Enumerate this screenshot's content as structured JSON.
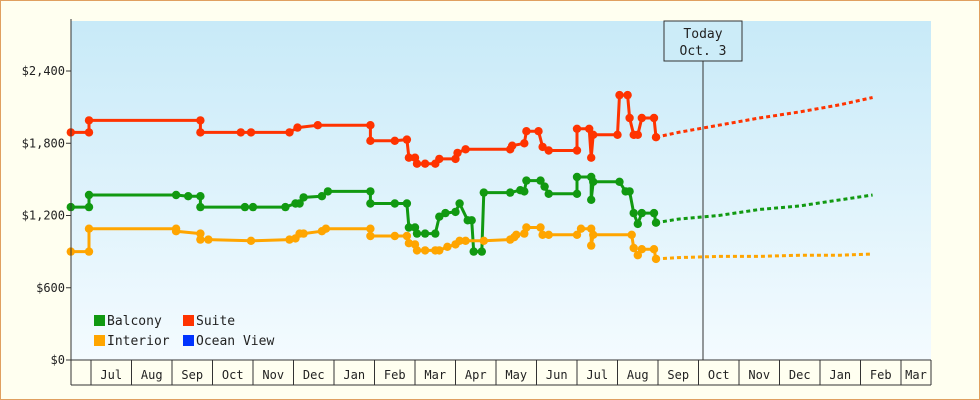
{
  "chart_data": {
    "type": "line",
    "title": "",
    "xlabel": "",
    "ylabel": "",
    "x_unit": "month",
    "x_range": [
      "2023-06-01",
      "2024-03-31"
    ],
    "ylim": [
      0,
      2700
    ],
    "y_ticks": [
      0,
      600,
      1200,
      1800,
      2400
    ],
    "y_tick_labels": [
      "$0",
      "$600",
      "$1,200",
      "$1,800",
      "$2,400"
    ],
    "x_tick_labels": [
      "Jul",
      "Aug",
      "Sep",
      "Oct",
      "Nov",
      "Dec",
      "Jan",
      "Feb",
      "Mar",
      "Apr",
      "May",
      "Jun",
      "Jul",
      "Aug",
      "Sep",
      "Oct",
      "Nov",
      "Dec",
      "Jan",
      "Feb",
      "Mar"
    ],
    "today": {
      "label_line1": "Today",
      "label_line2": "Oct. 3"
    },
    "grid": false,
    "legend_position": "bottom-left",
    "legend": [
      {
        "name": "Balcony",
        "color": "#119911"
      },
      {
        "name": "Suite",
        "color": "#ff3300"
      },
      {
        "name": "Interior",
        "color": "#ffa500"
      },
      {
        "name": "Ocean View",
        "color": "#0033ff"
      }
    ],
    "series": [
      {
        "name": "Suite",
        "color": "#ff3300",
        "points": [
          [
            0,
            1890
          ],
          [
            0.45,
            1890
          ],
          [
            0.45,
            1990
          ],
          [
            3.2,
            1990
          ],
          [
            3.2,
            1890
          ],
          [
            4.2,
            1890
          ],
          [
            4.45,
            1890
          ],
          [
            5.4,
            1890
          ],
          [
            5.6,
            1930
          ],
          [
            6.1,
            1950
          ],
          [
            7.4,
            1950
          ],
          [
            7.4,
            1820
          ],
          [
            8.0,
            1820
          ],
          [
            8.3,
            1830
          ],
          [
            8.35,
            1680
          ],
          [
            8.5,
            1680
          ],
          [
            8.55,
            1630
          ],
          [
            8.75,
            1630
          ],
          [
            9.0,
            1630
          ],
          [
            9.1,
            1670
          ],
          [
            9.5,
            1670
          ],
          [
            9.55,
            1720
          ],
          [
            9.75,
            1750
          ],
          [
            10.85,
            1750
          ],
          [
            10.9,
            1780
          ],
          [
            11.2,
            1800
          ],
          [
            11.25,
            1900
          ],
          [
            11.55,
            1900
          ],
          [
            11.65,
            1770
          ],
          [
            11.8,
            1740
          ],
          [
            12.5,
            1740
          ],
          [
            12.5,
            1920
          ],
          [
            12.8,
            1920
          ],
          [
            12.85,
            1680
          ],
          [
            12.9,
            1870
          ],
          [
            13.5,
            1870
          ],
          [
            13.55,
            2200
          ],
          [
            13.75,
            2200
          ],
          [
            13.8,
            2010
          ],
          [
            13.9,
            1870
          ],
          [
            14.0,
            1870
          ],
          [
            14.1,
            2010
          ],
          [
            14.4,
            2010
          ],
          [
            14.45,
            1850
          ]
        ],
        "forecast": [
          [
            14.45,
            1850
          ],
          [
            15.0,
            1890
          ],
          [
            16.0,
            1950
          ],
          [
            17.0,
            2010
          ],
          [
            18.0,
            2060
          ],
          [
            19.0,
            2120
          ],
          [
            19.8,
            2180
          ]
        ]
      },
      {
        "name": "Balcony",
        "color": "#119911",
        "points": [
          [
            0,
            1270
          ],
          [
            0.45,
            1270
          ],
          [
            0.45,
            1370
          ],
          [
            2.6,
            1370
          ],
          [
            2.9,
            1360
          ],
          [
            3.2,
            1360
          ],
          [
            3.2,
            1270
          ],
          [
            4.3,
            1270
          ],
          [
            4.5,
            1270
          ],
          [
            5.3,
            1270
          ],
          [
            5.55,
            1300
          ],
          [
            5.65,
            1300
          ],
          [
            5.75,
            1350
          ],
          [
            6.2,
            1360
          ],
          [
            6.35,
            1400
          ],
          [
            7.4,
            1400
          ],
          [
            7.4,
            1300
          ],
          [
            8.0,
            1300
          ],
          [
            8.3,
            1300
          ],
          [
            8.35,
            1100
          ],
          [
            8.5,
            1100
          ],
          [
            8.55,
            1050
          ],
          [
            8.75,
            1050
          ],
          [
            9.0,
            1050
          ],
          [
            9.1,
            1190
          ],
          [
            9.25,
            1220
          ],
          [
            9.5,
            1230
          ],
          [
            9.6,
            1300
          ],
          [
            9.8,
            1160
          ],
          [
            9.9,
            1160
          ],
          [
            9.95,
            900
          ],
          [
            10.15,
            900
          ],
          [
            10.2,
            1390
          ],
          [
            10.85,
            1390
          ],
          [
            11.1,
            1410
          ],
          [
            11.2,
            1400
          ],
          [
            11.25,
            1490
          ],
          [
            11.6,
            1490
          ],
          [
            11.7,
            1440
          ],
          [
            11.8,
            1380
          ],
          [
            12.5,
            1380
          ],
          [
            12.5,
            1520
          ],
          [
            12.85,
            1520
          ],
          [
            12.85,
            1330
          ],
          [
            12.9,
            1480
          ],
          [
            13.55,
            1480
          ],
          [
            13.7,
            1400
          ],
          [
            13.8,
            1400
          ],
          [
            13.9,
            1220
          ],
          [
            14.0,
            1130
          ],
          [
            14.1,
            1220
          ],
          [
            14.4,
            1220
          ],
          [
            14.45,
            1140
          ]
        ],
        "forecast": [
          [
            14.45,
            1140
          ],
          [
            15.0,
            1170
          ],
          [
            16.0,
            1200
          ],
          [
            17.0,
            1250
          ],
          [
            18.0,
            1280
          ],
          [
            19.0,
            1330
          ],
          [
            19.8,
            1370
          ]
        ]
      },
      {
        "name": "Interior",
        "color": "#ffa500",
        "points": [
          [
            0,
            900
          ],
          [
            0.45,
            900
          ],
          [
            0.45,
            1090
          ],
          [
            2.6,
            1090
          ],
          [
            2.6,
            1070
          ],
          [
            3.2,
            1050
          ],
          [
            3.2,
            1000
          ],
          [
            3.4,
            1000
          ],
          [
            4.45,
            990
          ],
          [
            5.4,
            1000
          ],
          [
            5.55,
            1010
          ],
          [
            5.65,
            1050
          ],
          [
            5.75,
            1050
          ],
          [
            6.2,
            1070
          ],
          [
            6.3,
            1090
          ],
          [
            7.4,
            1090
          ],
          [
            7.4,
            1030
          ],
          [
            8.0,
            1030
          ],
          [
            8.3,
            1030
          ],
          [
            8.35,
            970
          ],
          [
            8.5,
            960
          ],
          [
            8.55,
            910
          ],
          [
            8.75,
            910
          ],
          [
            9.0,
            910
          ],
          [
            9.1,
            910
          ],
          [
            9.3,
            940
          ],
          [
            9.5,
            960
          ],
          [
            9.6,
            990
          ],
          [
            9.75,
            990
          ],
          [
            10.2,
            990
          ],
          [
            10.85,
            1000
          ],
          [
            10.95,
            1020
          ],
          [
            11.0,
            1040
          ],
          [
            11.2,
            1050
          ],
          [
            11.25,
            1100
          ],
          [
            11.6,
            1100
          ],
          [
            11.65,
            1040
          ],
          [
            11.8,
            1040
          ],
          [
            12.5,
            1040
          ],
          [
            12.6,
            1090
          ],
          [
            12.85,
            1090
          ],
          [
            12.85,
            950
          ],
          [
            12.9,
            1040
          ],
          [
            13.85,
            1040
          ],
          [
            13.9,
            930
          ],
          [
            14.0,
            870
          ],
          [
            14.1,
            920
          ],
          [
            14.4,
            920
          ],
          [
            14.45,
            840
          ]
        ],
        "forecast": [
          [
            14.45,
            840
          ],
          [
            15.0,
            850
          ],
          [
            16.0,
            860
          ],
          [
            17.0,
            860
          ],
          [
            18.0,
            870
          ],
          [
            19.0,
            870
          ],
          [
            19.8,
            880
          ]
        ]
      },
      {
        "name": "Ocean View",
        "color": "#0033ff",
        "points": [],
        "forecast": []
      }
    ]
  }
}
